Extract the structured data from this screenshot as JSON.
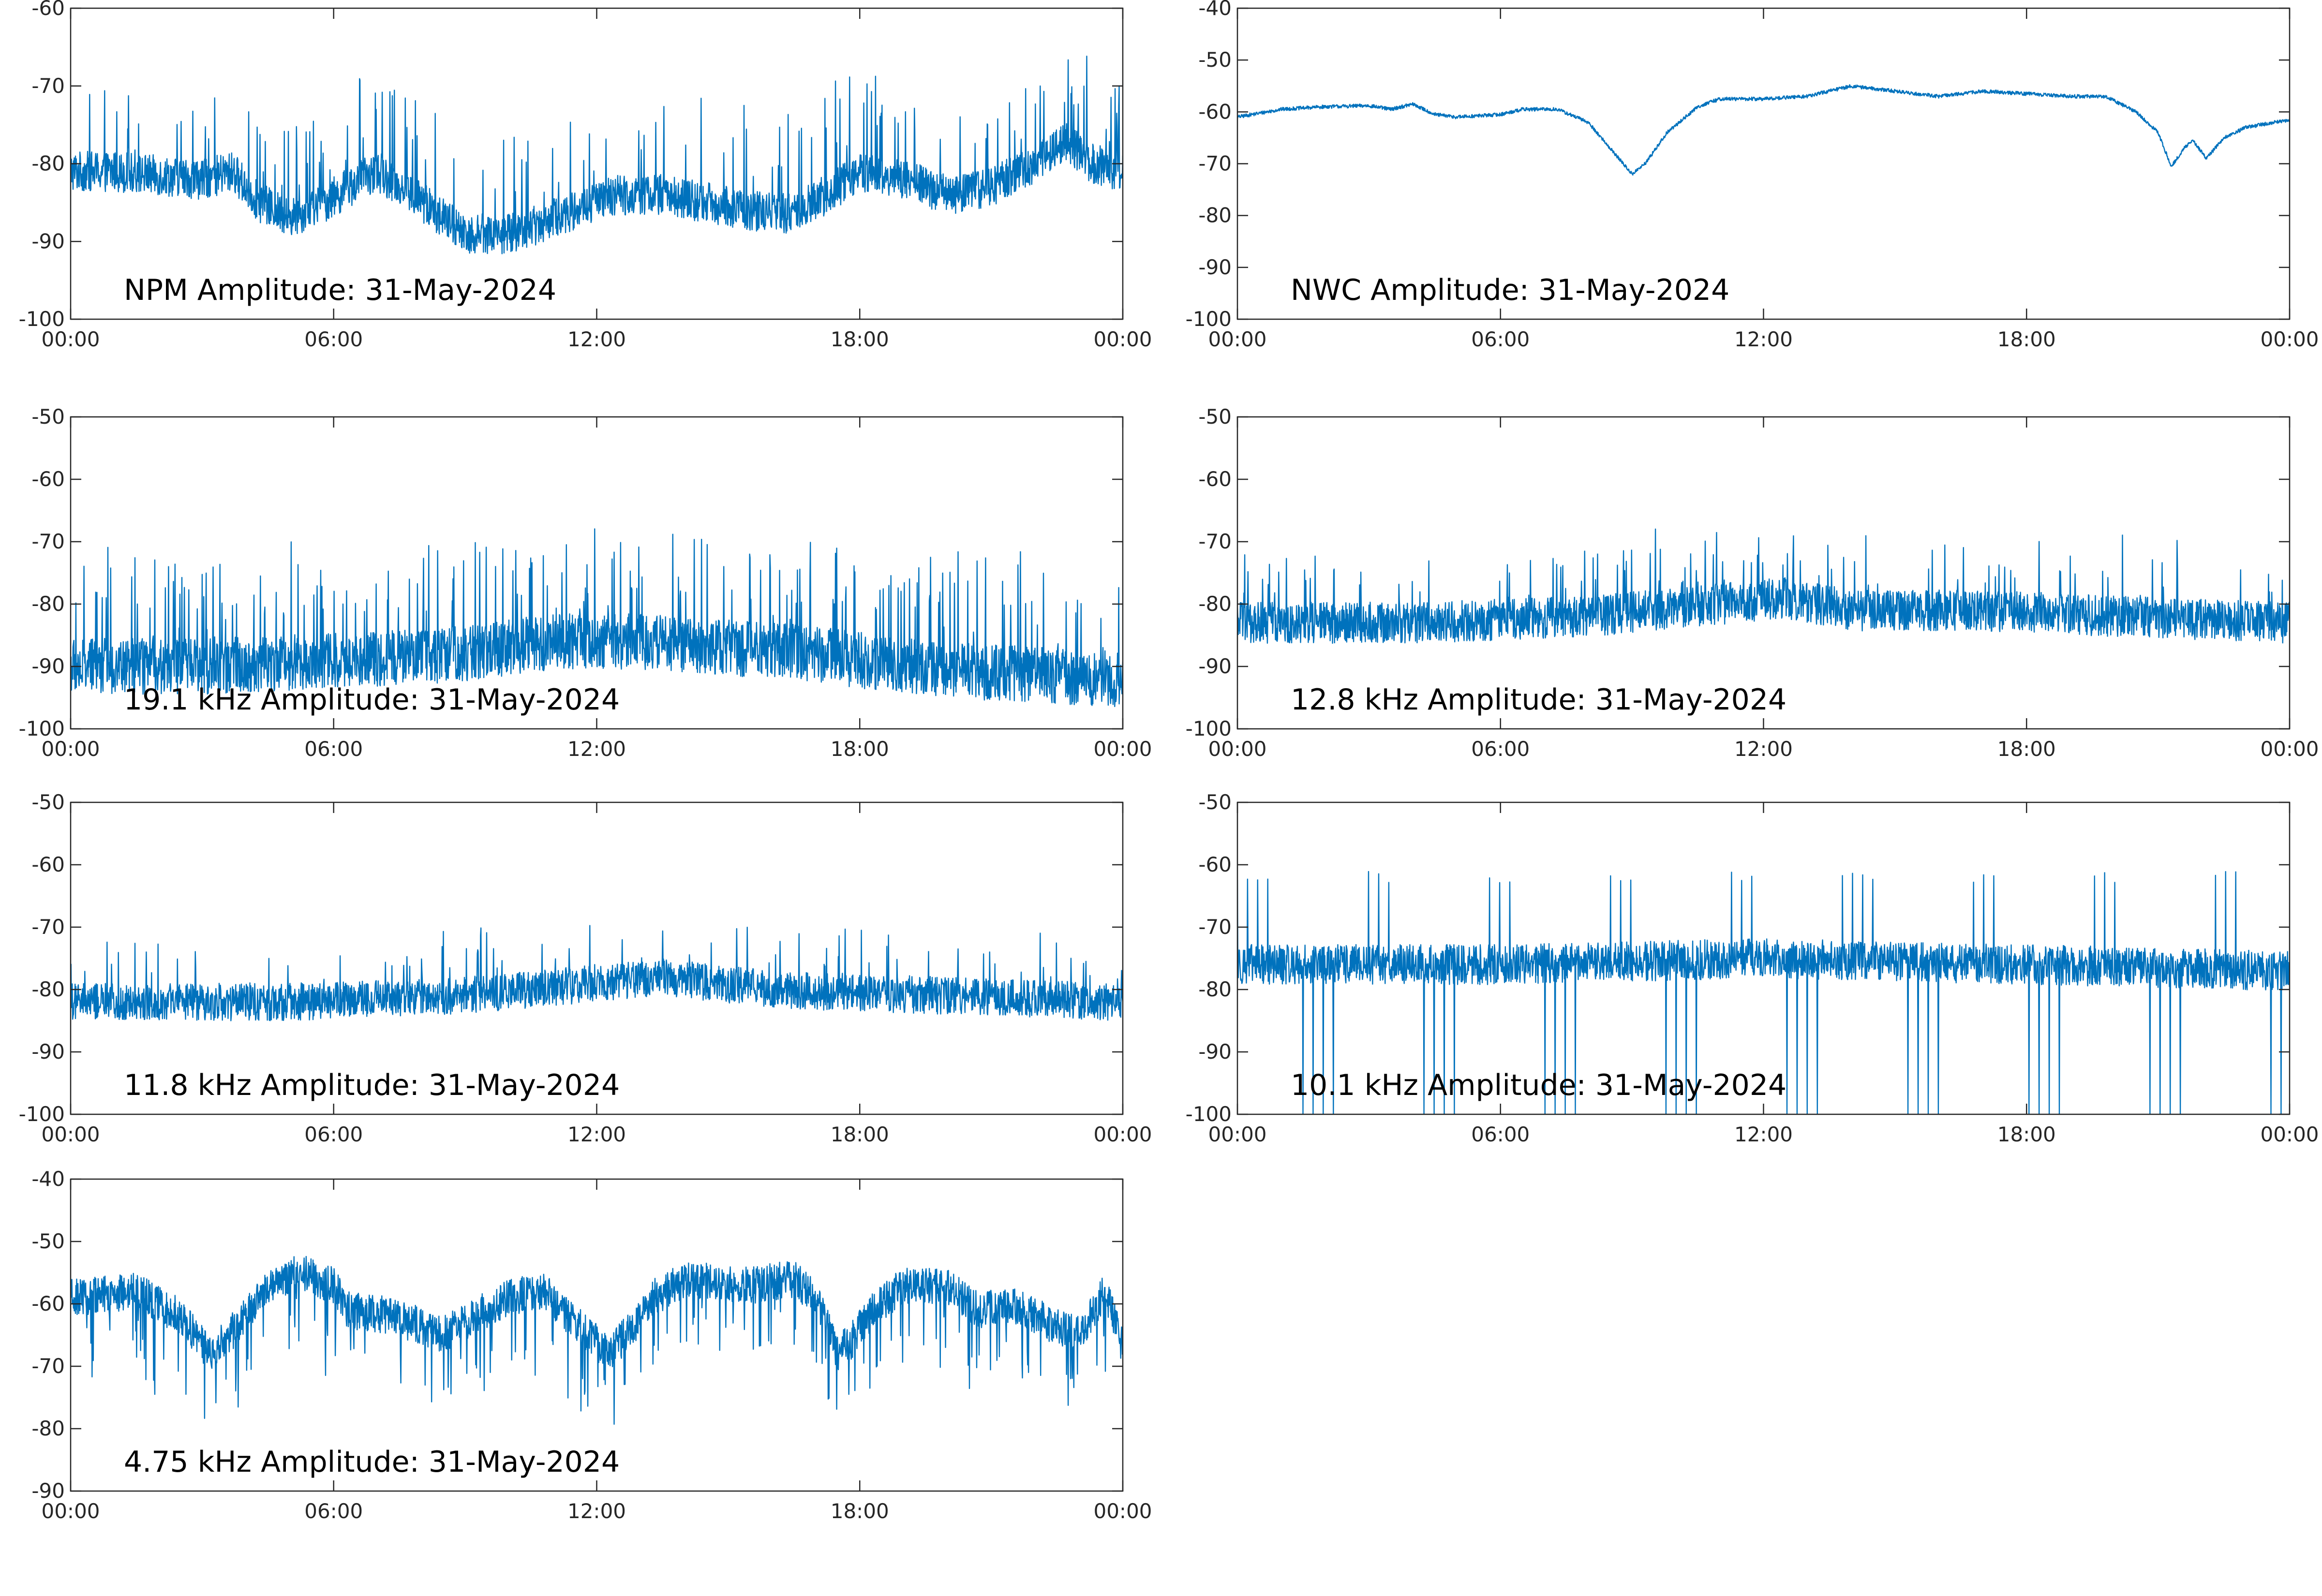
{
  "chart_data": [
    {
      "type": "line",
      "annotation": "NPM Amplitude: 31-May-2024",
      "title": "",
      "xlabel": "",
      "ylabel": "",
      "x_ticks": [
        "00:00",
        "06:00",
        "12:00",
        "18:00",
        "00:00"
      ],
      "x_range_hours": [
        0,
        24
      ],
      "ylim": [
        -100,
        -60
      ],
      "y_ticks": [
        -100,
        -90,
        -80,
        -70,
        -60
      ],
      "series": [
        {
          "color": "#0072BD",
          "noise": 2.6,
          "spike_rate": 0.05,
          "spike_max": 12,
          "points": [
            [
              0,
              -81
            ],
            [
              1,
              -81
            ],
            [
              2,
              -81.5
            ],
            [
              3,
              -82
            ],
            [
              3.7,
              -81
            ],
            [
              4.3,
              -85
            ],
            [
              5,
              -87
            ],
            [
              5.8,
              -85
            ],
            [
              6.5,
              -82.5
            ],
            [
              7,
              -81
            ],
            [
              7.8,
              -84
            ],
            [
              8.5,
              -87
            ],
            [
              9,
              -89
            ],
            [
              10,
              -89
            ],
            [
              10.8,
              -87.5
            ],
            [
              11.5,
              -86
            ],
            [
              12.5,
              -84
            ],
            [
              13.5,
              -84
            ],
            [
              14.5,
              -85
            ],
            [
              15.5,
              -86
            ],
            [
              16.5,
              -86.5
            ],
            [
              17.5,
              -83
            ],
            [
              18,
              -81
            ],
            [
              19,
              -82
            ],
            [
              20,
              -84
            ],
            [
              21,
              -83
            ],
            [
              22,
              -80
            ],
            [
              22.7,
              -77
            ],
            [
              23.3,
              -80
            ],
            [
              24,
              -81
            ]
          ]
        }
      ]
    },
    {
      "type": "line",
      "annotation": "NWC Amplitude: 31-May-2024",
      "title": "",
      "xlabel": "",
      "ylabel": "",
      "x_ticks": [
        "00:00",
        "06:00",
        "12:00",
        "18:00",
        "00:00"
      ],
      "x_range_hours": [
        0,
        24
      ],
      "ylim": [
        -100,
        -40
      ],
      "y_ticks": [
        -100,
        -90,
        -80,
        -70,
        -60,
        -50,
        -40
      ],
      "series": [
        {
          "color": "#0072BD",
          "noise": 0.35,
          "spike_rate": 0.0,
          "spike_max": 0,
          "points": [
            [
              0,
              -61
            ],
            [
              1,
              -59.5
            ],
            [
              2,
              -59
            ],
            [
              3,
              -58.8
            ],
            [
              3.5,
              -59.5
            ],
            [
              4,
              -58.5
            ],
            [
              4.5,
              -60.5
            ],
            [
              5,
              -61
            ],
            [
              6,
              -60.5
            ],
            [
              6.5,
              -59.5
            ],
            [
              7.3,
              -59.5
            ],
            [
              8,
              -62
            ],
            [
              8.5,
              -67
            ],
            [
              9,
              -72
            ],
            [
              9.3,
              -70
            ],
            [
              9.8,
              -64
            ],
            [
              10.5,
              -59
            ],
            [
              11,
              -57.5
            ],
            [
              12,
              -57.5
            ],
            [
              13,
              -57
            ],
            [
              14,
              -55
            ],
            [
              15,
              -56
            ],
            [
              16,
              -57
            ],
            [
              17,
              -56
            ],
            [
              18,
              -56.5
            ],
            [
              19,
              -57
            ],
            [
              19.8,
              -57
            ],
            [
              20.5,
              -60
            ],
            [
              21,
              -64
            ],
            [
              21.3,
              -70.5
            ],
            [
              21.6,
              -67
            ],
            [
              21.8,
              -65.5
            ],
            [
              22.1,
              -69
            ],
            [
              22.5,
              -65
            ],
            [
              23,
              -63
            ],
            [
              24,
              -61.5
            ]
          ]
        }
      ]
    },
    {
      "type": "line",
      "annotation": "19.1 kHz Amplitude: 31-May-2024",
      "title": "",
      "xlabel": "",
      "ylabel": "",
      "x_ticks": [
        "00:00",
        "06:00",
        "12:00",
        "18:00",
        "00:00"
      ],
      "x_range_hours": [
        0,
        24
      ],
      "ylim": [
        -100,
        -50
      ],
      "y_ticks": [
        -100,
        -90,
        -80,
        -70,
        -60,
        -50
      ],
      "series": [
        {
          "color": "#0072BD",
          "noise": 4.5,
          "spike_rate": 0.08,
          "spike_max": 16,
          "points": [
            [
              0,
              -90
            ],
            [
              3,
              -90
            ],
            [
              6,
              -89
            ],
            [
              9,
              -88
            ],
            [
              11,
              -86
            ],
            [
              13,
              -86
            ],
            [
              15,
              -87
            ],
            [
              17,
              -88
            ],
            [
              19,
              -90
            ],
            [
              21,
              -91
            ],
            [
              24,
              -92
            ]
          ]
        }
      ]
    },
    {
      "type": "line",
      "annotation": "12.8 kHz Amplitude: 31-May-2024",
      "title": "",
      "xlabel": "",
      "ylabel": "",
      "x_ticks": [
        "00:00",
        "06:00",
        "12:00",
        "18:00",
        "00:00"
      ],
      "x_range_hours": [
        0,
        24
      ],
      "ylim": [
        -100,
        -50
      ],
      "y_ticks": [
        -100,
        -90,
        -80,
        -70,
        -60,
        -50
      ],
      "series": [
        {
          "color": "#0072BD",
          "noise": 3.3,
          "spike_rate": 0.04,
          "spike_max": 10,
          "points": [
            [
              0,
              -83
            ],
            [
              4,
              -83
            ],
            [
              8,
              -82
            ],
            [
              11,
              -80
            ],
            [
              12.5,
              -79
            ],
            [
              14,
              -81
            ],
            [
              17,
              -81
            ],
            [
              20,
              -82
            ],
            [
              24,
              -83
            ]
          ]
        }
      ]
    },
    {
      "type": "line",
      "annotation": "11.8 kHz Amplitude: 31-May-2024",
      "title": "",
      "xlabel": "",
      "ylabel": "",
      "x_ticks": [
        "00:00",
        "06:00",
        "12:00",
        "18:00",
        "00:00"
      ],
      "x_range_hours": [
        0,
        24
      ],
      "ylim": [
        -100,
        -50
      ],
      "y_ticks": [
        -100,
        -90,
        -80,
        -70,
        -60,
        -50
      ],
      "series": [
        {
          "color": "#0072BD",
          "noise": 3.0,
          "spike_rate": 0.03,
          "spike_max": 9,
          "points": [
            [
              0,
              -82
            ],
            [
              5,
              -82
            ],
            [
              9,
              -81
            ],
            [
              12,
              -79
            ],
            [
              13.5,
              -78
            ],
            [
              16,
              -80
            ],
            [
              20,
              -81
            ],
            [
              24,
              -82
            ]
          ]
        }
      ]
    },
    {
      "type": "line",
      "annotation": "10.1 kHz Amplitude: 31-May-2024",
      "title": "",
      "xlabel": "",
      "ylabel": "",
      "x_ticks": [
        "00:00",
        "06:00",
        "12:00",
        "18:00",
        "00:00"
      ],
      "x_range_hours": [
        0,
        24
      ],
      "ylim": [
        -100,
        -50
      ],
      "y_ticks": [
        -100,
        -90,
        -80,
        -70,
        -60,
        -50
      ],
      "series": [
        {
          "color": "#0072BD",
          "noise": 3.2,
          "spike_rate": 0.0,
          "spike_max": 0,
          "periodic_every_hours": 0.23,
          "periodic_up_to": -63,
          "periodic_down_to": -100,
          "points": [
            [
              0,
              -76
            ],
            [
              6,
              -76
            ],
            [
              12,
              -75
            ],
            [
              18,
              -76
            ],
            [
              24,
              -77
            ]
          ]
        }
      ]
    },
    {
      "type": "line",
      "annotation": "4.75 kHz Amplitude: 31-May-2024",
      "title": "",
      "xlabel": "",
      "ylabel": "",
      "x_ticks": [
        "00:00",
        "06:00",
        "12:00",
        "18:00",
        "00:00"
      ],
      "x_range_hours": [
        0,
        24
      ],
      "ylim": [
        -90,
        -40
      ],
      "y_ticks": [
        -90,
        -80,
        -70,
        -60,
        -50,
        -40
      ],
      "series": [
        {
          "color": "#0072BD",
          "noise": 3.0,
          "spike_rate": 0.06,
          "spike_max": -12,
          "points": [
            [
              0,
              -59
            ],
            [
              1.5,
              -58
            ],
            [
              2.5,
              -62
            ],
            [
              3.2,
              -68
            ],
            [
              4,
              -62
            ],
            [
              4.7,
              -56
            ],
            [
              5.3,
              -55
            ],
            [
              6,
              -57
            ],
            [
              6.3,
              -61
            ],
            [
              7.5,
              -62
            ],
            [
              8.5,
              -65
            ],
            [
              9.2,
              -62
            ],
            [
              10,
              -59
            ],
            [
              10.8,
              -58
            ],
            [
              11.5,
              -63
            ],
            [
              12.3,
              -68
            ],
            [
              12.9,
              -63
            ],
            [
              13.3,
              -59
            ],
            [
              14,
              -56
            ],
            [
              15.5,
              -57
            ],
            [
              16.5,
              -56
            ],
            [
              17,
              -59
            ],
            [
              17.5,
              -68
            ],
            [
              17.8,
              -66
            ],
            [
              18.3,
              -61
            ],
            [
              19,
              -57
            ],
            [
              20,
              -57
            ],
            [
              20.7,
              -61
            ],
            [
              21.5,
              -60
            ],
            [
              22.3,
              -63
            ],
            [
              23,
              -65
            ],
            [
              23.6,
              -58
            ],
            [
              24,
              -66
            ]
          ]
        }
      ]
    }
  ]
}
